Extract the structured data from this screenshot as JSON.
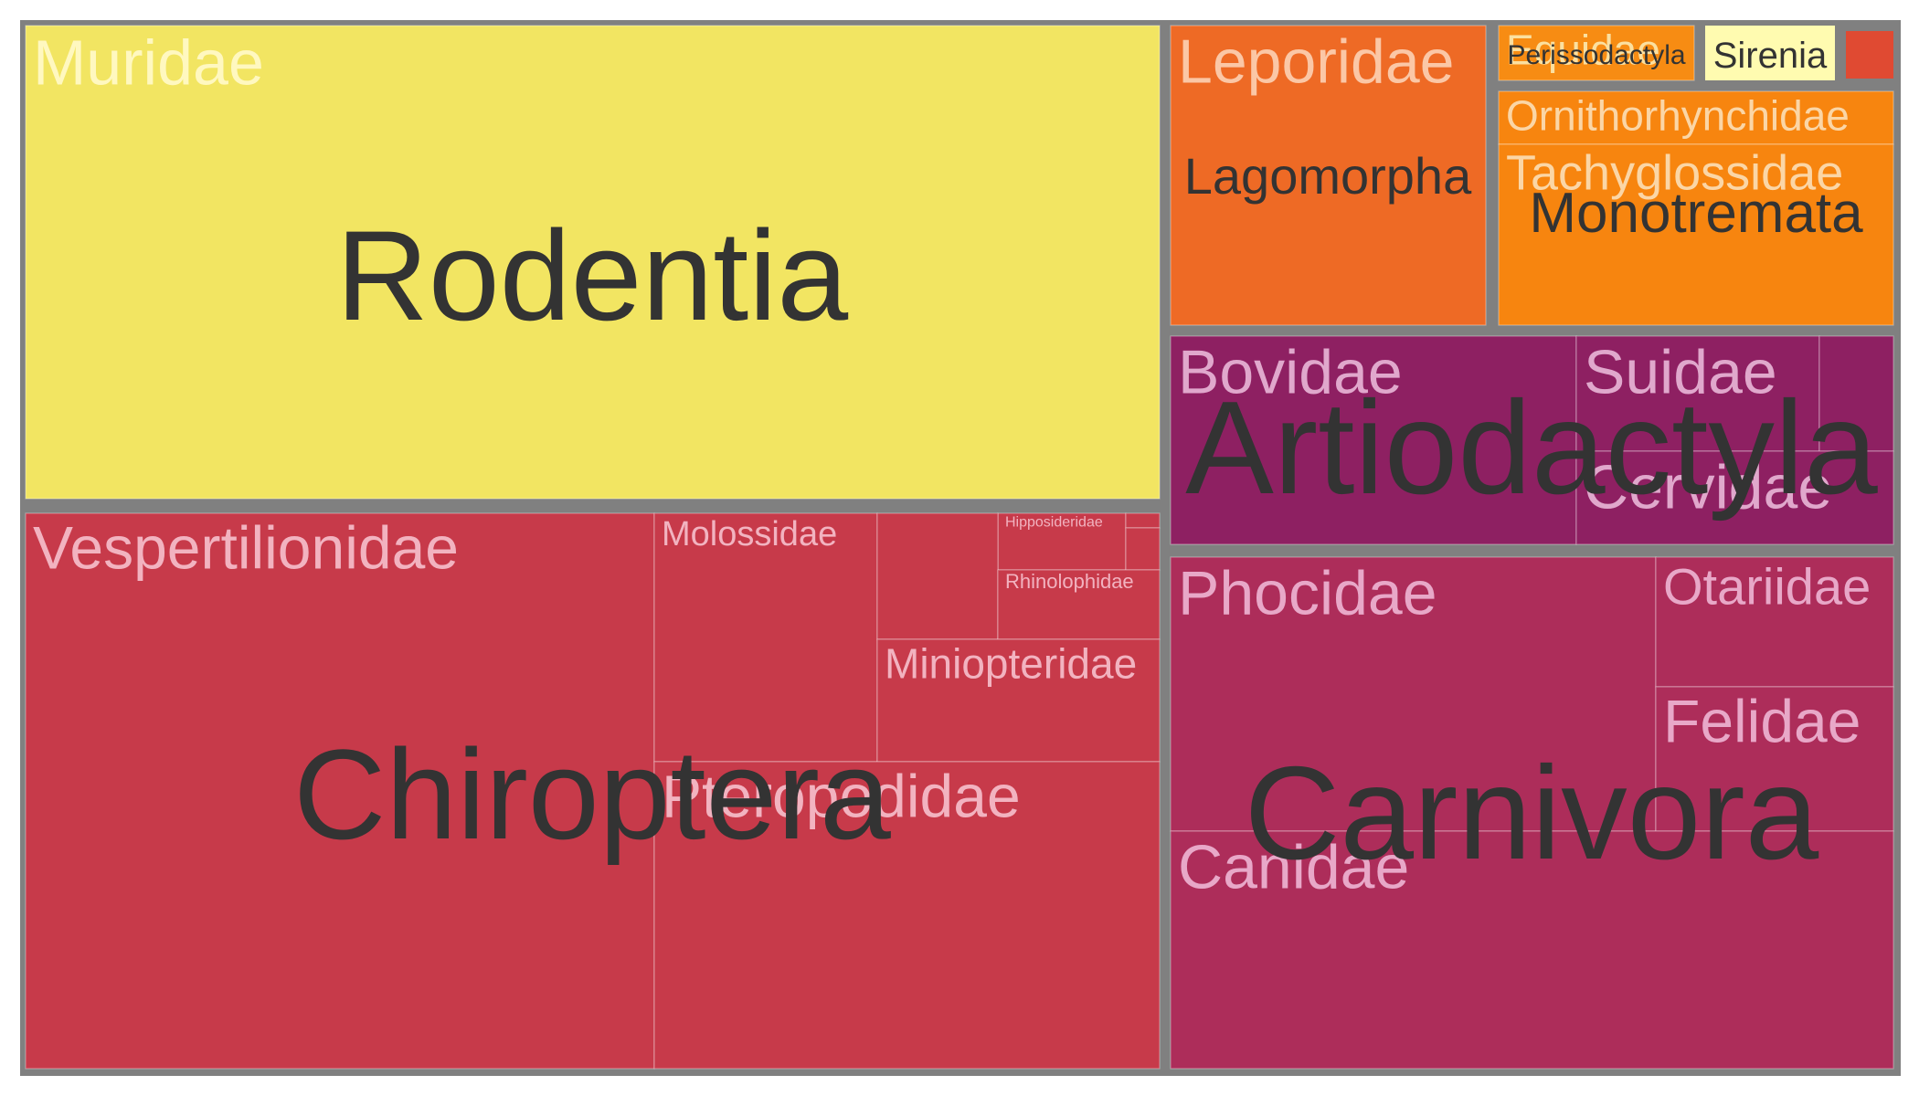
{
  "chart_data": {
    "type": "treemap",
    "orders": [
      {
        "name": "Rodentia",
        "color": "#f2e562",
        "families": [
          {
            "name": "Muridae",
            "value": 100
          }
        ]
      },
      {
        "name": "Chiroptera",
        "color": "#c73a4a",
        "families": [
          {
            "name": "Vespertilionidae",
            "value": 55
          },
          {
            "name": "Molossidae",
            "value": 15
          },
          {
            "name": "Hipposideridae",
            "value": 2.5
          },
          {
            "name": "",
            "value": 0.8
          },
          {
            "name": "",
            "value": 0.8
          },
          {
            "name": "",
            "value": 2
          },
          {
            "name": "Rhinolophidae",
            "value": 3
          },
          {
            "name": "Miniopteridae",
            "value": 6
          },
          {
            "name": "Pteropodidae",
            "value": 28
          }
        ]
      },
      {
        "name": "Lagomorpha",
        "color": "#ee6a25",
        "families": [
          {
            "name": "Leporidae",
            "value": 15
          }
        ]
      },
      {
        "name": "Perissodactyla",
        "color": "#f78c13",
        "families": [
          {
            "name": "Equidae",
            "value": 2.5
          }
        ]
      },
      {
        "name": "Sirenia",
        "color": "#fffbb0",
        "families": []
      },
      {
        "name": "",
        "color": "#e04a32",
        "families": []
      },
      {
        "name": "Monotremata",
        "color": "#f7850f",
        "families": [
          {
            "name": "Ornithorhynchidae",
            "value": 1.4
          },
          {
            "name": "Tachyglossidae",
            "value": 4.4
          }
        ]
      },
      {
        "name": "Artiodactyla",
        "color": "#8e2062",
        "families": [
          {
            "name": "Bovidae",
            "value": 11
          },
          {
            "name": "Suidae",
            "value": 4
          },
          {
            "name": "",
            "value": 2
          },
          {
            "name": "Cervidae",
            "value": 7
          }
        ]
      },
      {
        "name": "Carnivora",
        "color": "#ad2d5a",
        "families": [
          {
            "name": "Phocidae",
            "value": 24
          },
          {
            "name": "Otariidae",
            "value": 6.5
          },
          {
            "name": "Felidae",
            "value": 7
          },
          {
            "name": "Canidae",
            "value": 24
          }
        ]
      }
    ]
  }
}
